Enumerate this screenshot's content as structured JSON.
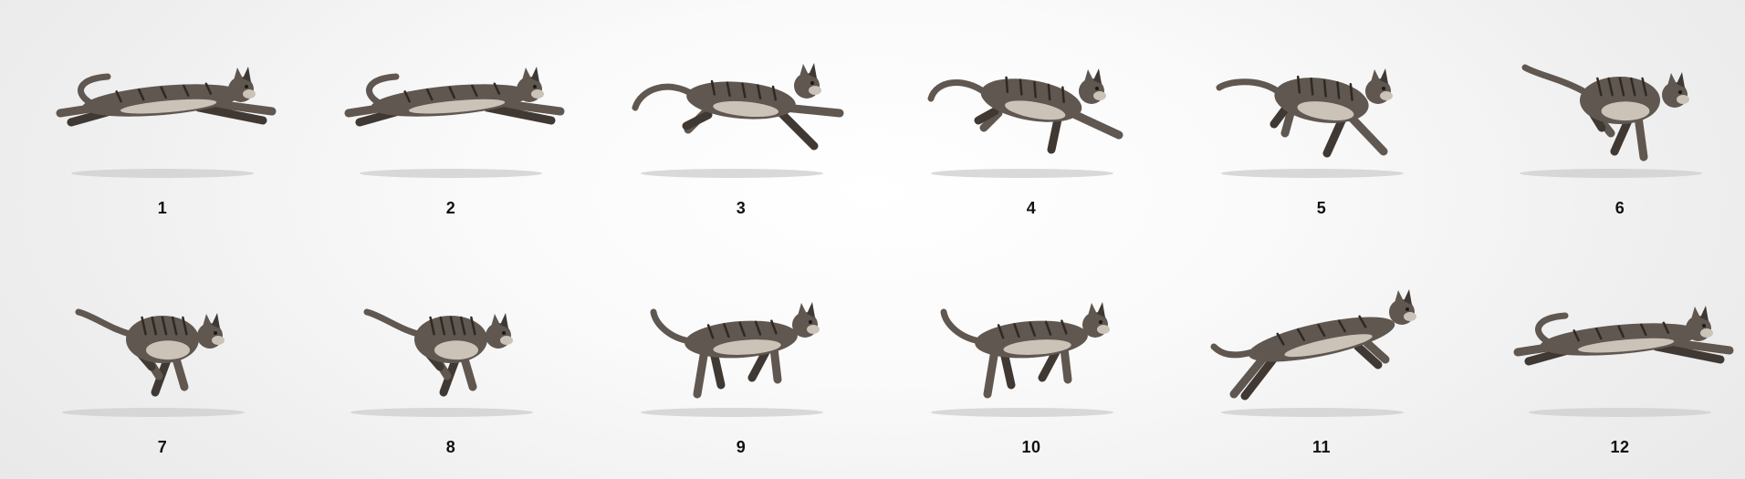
{
  "sprite_sheet": {
    "subject": "running cat",
    "colors": {
      "fur": "#5f5750",
      "fur_dark": "#3f3833",
      "belly": "#cbc3b8",
      "stripe": "#2e2925",
      "shadow": "#cfcfcf",
      "label": "#111111"
    },
    "frames": [
      {
        "label": "1",
        "pose": "full-extension"
      },
      {
        "label": "2",
        "pose": "full-extension"
      },
      {
        "label": "3",
        "pose": "front-reach"
      },
      {
        "label": "4",
        "pose": "front-landing"
      },
      {
        "label": "5",
        "pose": "front-plant"
      },
      {
        "label": "6",
        "pose": "gather"
      },
      {
        "label": "7",
        "pose": "tuck"
      },
      {
        "label": "8",
        "pose": "tuck"
      },
      {
        "label": "9",
        "pose": "push-off"
      },
      {
        "label": "10",
        "pose": "push-off"
      },
      {
        "label": "11",
        "pose": "launch"
      },
      {
        "label": "12",
        "pose": "full-extension"
      }
    ]
  }
}
